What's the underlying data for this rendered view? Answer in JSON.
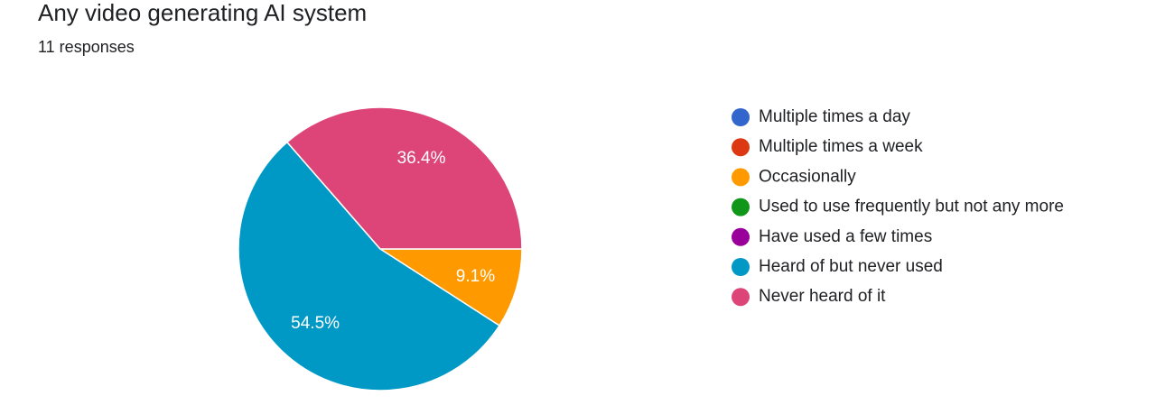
{
  "chart_data": {
    "type": "pie",
    "title": "Any video generating AI system",
    "subtitle": "11 responses",
    "categories": [
      "Multiple times a day",
      "Multiple times a week",
      "Occasionally",
      "Used to use frequently but not any more",
      "Have used a few times",
      "Heard of but never used",
      "Never heard of it"
    ],
    "values": [
      0,
      0,
      9.1,
      0,
      0,
      54.5,
      36.4
    ],
    "value_labels": [
      null,
      null,
      "9.1%",
      null,
      null,
      "54.5%",
      "36.4%"
    ],
    "colors": [
      "#3366cc",
      "#dc3912",
      "#ff9900",
      "#109618",
      "#990099",
      "#0099c6",
      "#dd4477"
    ],
    "legend": "right"
  }
}
